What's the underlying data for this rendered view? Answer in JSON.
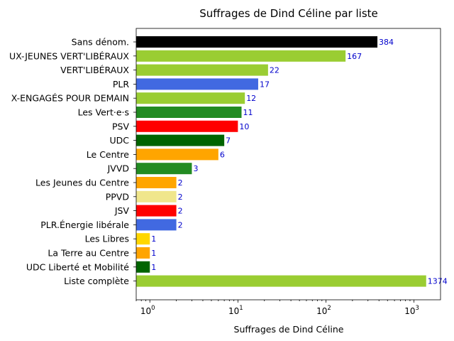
{
  "chart_data": {
    "type": "bar",
    "orientation": "horizontal",
    "title": "Suffrages de Dind Céline par liste",
    "xlabel": "Suffrages de Dind Céline",
    "ylabel": "",
    "xscale": "log",
    "xlim": [
      0.7,
      2000
    ],
    "xticks": [
      {
        "value": 1,
        "label": "10",
        "exp": "0"
      },
      {
        "value": 10,
        "label": "10",
        "exp": "1"
      },
      {
        "value": 100,
        "label": "10",
        "exp": "2"
      },
      {
        "value": 1000,
        "label": "10",
        "exp": "3"
      }
    ],
    "grid": false,
    "value_label_color": "#0000cc",
    "bars": [
      {
        "category": "Sans dénom.",
        "value": 384,
        "label": "384",
        "color": "#000000"
      },
      {
        "category": "UX-JEUNES VERT'LIBÉRAUX",
        "value": 167,
        "label": "167",
        "color": "#9acd32"
      },
      {
        "category": "VERT'LIBÉRAUX",
        "value": 22,
        "label": "22",
        "color": "#9acd32"
      },
      {
        "category": "PLR",
        "value": 17,
        "label": "17",
        "color": "#4169e1"
      },
      {
        "category": "X-ENGAGÉS POUR DEMAIN",
        "value": 12,
        "label": "12",
        "color": "#9acd32"
      },
      {
        "category": "Les Vert·e·s",
        "value": 11,
        "label": "11",
        "color": "#228b22"
      },
      {
        "category": "PSV",
        "value": 10,
        "label": "10",
        "color": "#ff0000"
      },
      {
        "category": "UDC",
        "value": 7,
        "label": "7",
        "color": "#006400"
      },
      {
        "category": "Le Centre",
        "value": 6,
        "label": "6",
        "color": "#ffa500"
      },
      {
        "category": "JVVD",
        "value": 3,
        "label": "3",
        "color": "#228b22"
      },
      {
        "category": "Les Jeunes du Centre",
        "value": 2,
        "label": "2",
        "color": "#ffa500"
      },
      {
        "category": "PPVD",
        "value": 2,
        "label": "2",
        "color": "#f0e68c"
      },
      {
        "category": "JSV",
        "value": 2,
        "label": "2",
        "color": "#ff0000"
      },
      {
        "category": "PLR.Énergie libérale",
        "value": 2,
        "label": "2",
        "color": "#4169e1"
      },
      {
        "category": "Les Libres",
        "value": 1,
        "label": "1",
        "color": "#ffd700"
      },
      {
        "category": "La Terre au Centre",
        "value": 1,
        "label": "1",
        "color": "#ffa500"
      },
      {
        "category": "UDC Liberté et Mobilité",
        "value": 1,
        "label": "1",
        "color": "#006400"
      },
      {
        "category": "Liste complète",
        "value": 1374,
        "label": "1374",
        "color": "#9acd32"
      }
    ]
  }
}
